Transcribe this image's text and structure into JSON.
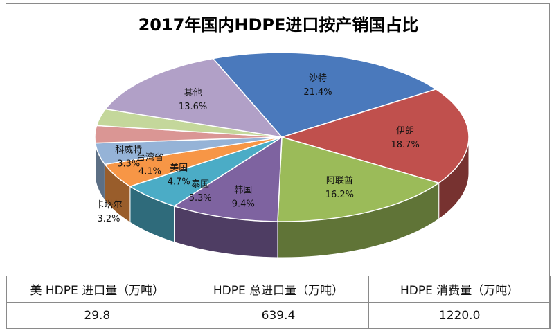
{
  "chart_data": {
    "type": "pie",
    "title": "2017年国内HDPE进口按产销国占比",
    "slices": [
      {
        "label": "沙特",
        "value": 21.4,
        "display": "21.4%",
        "color": "#4a79bc"
      },
      {
        "label": "伊朗",
        "value": 18.7,
        "display": "18.7%",
        "color": "#c0504d"
      },
      {
        "label": "阿联酋",
        "value": 16.2,
        "display": "16.2%",
        "color": "#9bbb59"
      },
      {
        "label": "韩国",
        "value": 9.4,
        "display": "9.4%",
        "color": "#7e63a0"
      },
      {
        "label": "泰国",
        "value": 5.3,
        "display": "5.3%",
        "color": "#4bacc6"
      },
      {
        "label": "美国",
        "value": 4.7,
        "display": "4.7%",
        "color": "#f79646"
      },
      {
        "label": "台湾省",
        "value": 4.1,
        "display": "4.1%",
        "color": "#95b3d7"
      },
      {
        "label": "科威特",
        "value": 3.3,
        "display": "3.3%",
        "color": "#da9694"
      },
      {
        "label": "卡塔尔",
        "value": 3.2,
        "display": "3.2%",
        "color": "#c4d79b"
      },
      {
        "label": "其他",
        "value": 13.6,
        "display": "13.6%",
        "color": "#b1a0c7"
      }
    ]
  },
  "table": {
    "headers": [
      "美 HDPE 进口量（万吨）",
      "HDPE 总进口量（万吨）",
      "HDPE 消费量（万吨）"
    ],
    "values": [
      "29.8",
      "639.4",
      "1220.0"
    ]
  }
}
